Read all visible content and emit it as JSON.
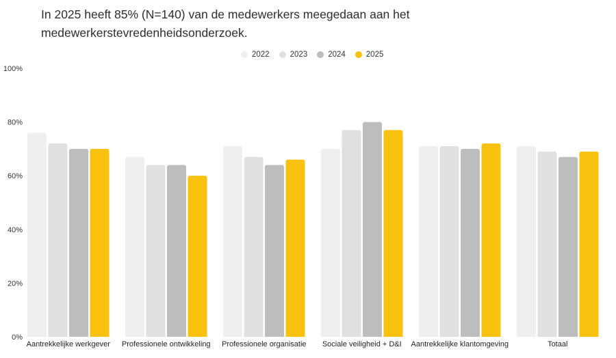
{
  "title": "In 2025 heeft 85% (N=140) van de medewerkers meegedaan aan het medewerkerstevredenheidsonderzoek.",
  "chart_data": {
    "type": "bar",
    "categories": [
      "Aantrekkelijke werkgever",
      "Professionele ontwikkeling",
      "Professionele organisatie",
      "Sociale veiligheid + D&I",
      "Aantrekkelijke klantomgeving",
      "Totaal"
    ],
    "series": [
      {
        "name": "2022",
        "color": "#efefef",
        "values": [
          76,
          67,
          71,
          70,
          71,
          71
        ]
      },
      {
        "name": "2023",
        "color": "#e0e0e0",
        "values": [
          72,
          64,
          67,
          77,
          71,
          69
        ]
      },
      {
        "name": "2024",
        "color": "#bdbdbd",
        "values": [
          70,
          64,
          64,
          80,
          70,
          67
        ]
      },
      {
        "name": "2025",
        "color": "#f8c20f",
        "values": [
          70,
          60,
          66,
          77,
          72,
          69
        ]
      }
    ],
    "ylim": [
      0,
      100
    ],
    "yticks": [
      "0%",
      "20%",
      "40%",
      "60%",
      "80%",
      "100%"
    ],
    "ytick_values": [
      0,
      20,
      40,
      60,
      80,
      100
    ],
    "legend_position": "top-center",
    "grid": false
  }
}
